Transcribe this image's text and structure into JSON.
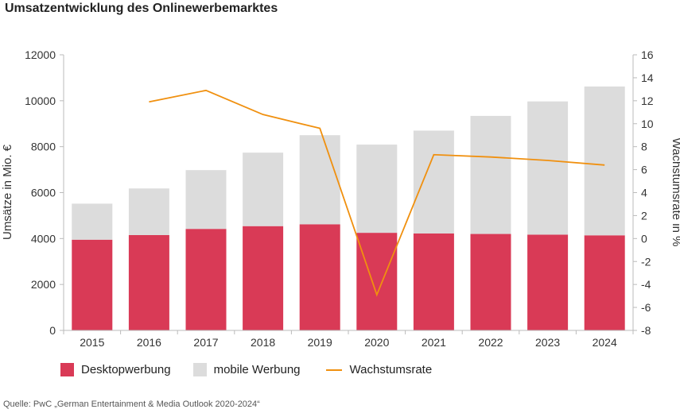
{
  "title": "Umsatzentwicklung des Onlinewerbemarktes",
  "source": "Quelle: PwC „German Entertainment & Media Outlook 2020-2024“",
  "colors": {
    "desktop": "#d93a56",
    "mobile": "#dcdcdc",
    "growth": "#f0900f"
  },
  "chart_data": {
    "type": "bar",
    "stacked": true,
    "categories": [
      "2015",
      "2016",
      "2017",
      "2018",
      "2019",
      "2020",
      "2021",
      "2022",
      "2023",
      "2024"
    ],
    "series": [
      {
        "name": "Desktopwerbung",
        "type": "bar",
        "axis": "left",
        "values": [
          3950,
          4150,
          4420,
          4540,
          4620,
          4250,
          4220,
          4200,
          4170,
          4140
        ]
      },
      {
        "name": "mobile Werbung",
        "type": "bar",
        "axis": "left",
        "values": [
          1570,
          2030,
          2560,
          3200,
          3880,
          3840,
          4480,
          5140,
          5800,
          6480
        ]
      },
      {
        "name": "Wachstumsrate",
        "type": "line",
        "axis": "right",
        "values": [
          null,
          11.9,
          12.9,
          10.8,
          9.6,
          -4.9,
          7.3,
          7.1,
          6.8,
          6.4
        ]
      }
    ],
    "ylabel": "Umsätze in Mio. €",
    "ylim": [
      0,
      12000
    ],
    "yticks": [
      "0",
      "2000",
      "4000",
      "6000",
      "8000",
      "10000",
      "12000"
    ],
    "y2label": "Wachstumsrate in %",
    "y2lim": [
      -8,
      16
    ],
    "y2ticks": [
      "-8",
      "-6",
      "-4",
      "-2",
      "0",
      "2",
      "4",
      "6",
      "8",
      "10",
      "12",
      "14",
      "16"
    ],
    "legend_position": "bottom-left",
    "grid": false
  }
}
